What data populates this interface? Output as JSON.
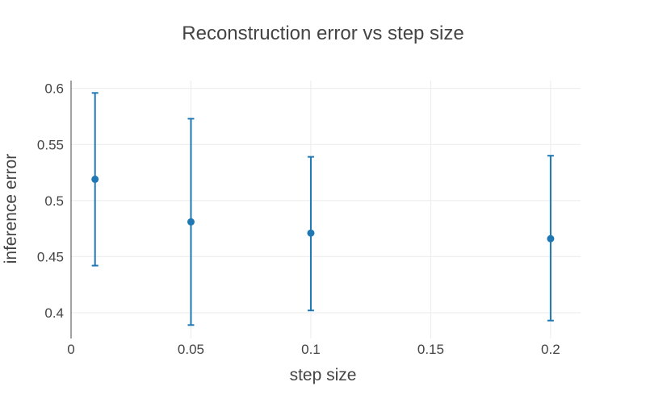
{
  "chart_data": {
    "type": "scatter",
    "title": "Reconstruction error vs step size",
    "xlabel": "step size",
    "ylabel": "inference error",
    "xlim": [
      0,
      0.2125
    ],
    "ylim": [
      0.377,
      0.607
    ],
    "x_ticks": [
      0,
      0.05,
      0.1,
      0.15,
      0.2
    ],
    "x_tick_labels": [
      "0",
      "0.05",
      "0.1",
      "0.15",
      "0.2"
    ],
    "y_ticks": [
      0.4,
      0.45,
      0.5,
      0.55,
      0.6
    ],
    "y_tick_labels": [
      "0.4",
      "0.45",
      "0.5",
      "0.55",
      "0.6"
    ],
    "grid": true,
    "series": [
      {
        "color": "#1f77b4",
        "points": [
          {
            "x": 0.01,
            "y": 0.519,
            "y_low": 0.442,
            "y_high": 0.596
          },
          {
            "x": 0.05,
            "y": 0.481,
            "y_low": 0.389,
            "y_high": 0.573
          },
          {
            "x": 0.1,
            "y": 0.471,
            "y_low": 0.402,
            "y_high": 0.539
          },
          {
            "x": 0.2,
            "y": 0.466,
            "y_low": 0.393,
            "y_high": 0.54
          }
        ]
      }
    ]
  }
}
